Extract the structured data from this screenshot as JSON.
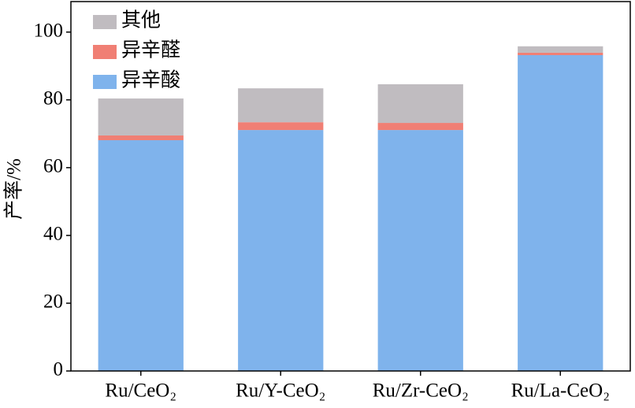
{
  "chart_data": {
    "type": "stacked_bar",
    "y_label": "产率/%",
    "categories": [
      "Ru/CeO₂",
      "Ru/Y-CeO₂",
      "Ru/Zr-CeO₂",
      "Ru/La-CeO₂"
    ],
    "series": [
      {
        "name": "异辛酸",
        "color": "#7fb3ec",
        "values": [
          68.1,
          71.1,
          71.1,
          93.2
        ]
      },
      {
        "name": "异辛醛",
        "color": "#f07f74",
        "values": [
          1.4,
          2.3,
          2.1,
          0.7
        ]
      },
      {
        "name": "其他",
        "color": "#c0bcc0",
        "values": [
          10.9,
          10.0,
          11.4,
          1.9
        ]
      }
    ],
    "ylim": [
      0,
      109
    ],
    "yticks": [
      0,
      20,
      40,
      60,
      80,
      100
    ],
    "legend": "upper left"
  }
}
